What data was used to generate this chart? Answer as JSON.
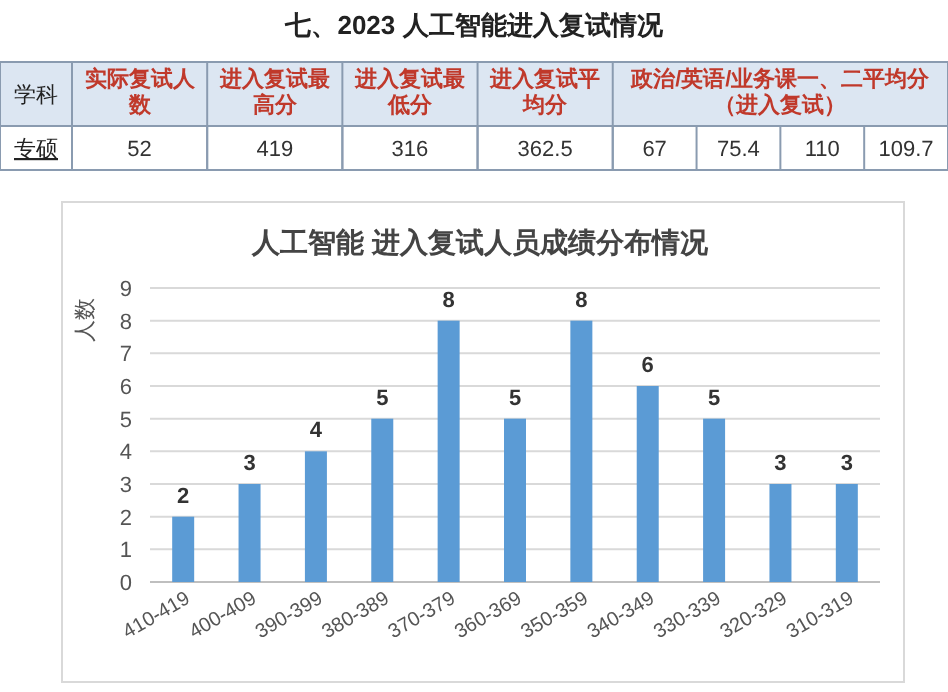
{
  "chart_data": [
    {
      "type": "other",
      "title": "七、2023 人工智能进入复试情况",
      "ylabel": "学科",
      "y_categories": [
        "专硕"
      ],
      "categories": [
        "实际复试人数",
        "进入复试最高分",
        "进入复试最低分",
        "进入复试平均分",
        "政治/英语/业务课一、二平均分（进入复试）"
      ],
      "cell_labels": [
        [
          "52",
          "419",
          "316",
          "362.5",
          "67",
          "75.4",
          "110",
          "109.7"
        ]
      ]
    },
    {
      "type": "bar",
      "title": "人工智能 进入复试人员成绩分布情况",
      "ylabel": "人数",
      "categories": [
        "410-419",
        "400-409",
        "390-399",
        "380-389",
        "370-379",
        "360-369",
        "350-359",
        "340-349",
        "330-339",
        "320-329",
        "310-319"
      ],
      "values": [
        2,
        3,
        4,
        5,
        8,
        5,
        8,
        6,
        5,
        3,
        3
      ],
      "color": "#5b9bd5",
      "ylim": [
        0,
        9
      ],
      "yticks": [
        0,
        1,
        2,
        3,
        4,
        5,
        6,
        7,
        8,
        9
      ],
      "grid": "y",
      "data_labels": true
    }
  ]
}
